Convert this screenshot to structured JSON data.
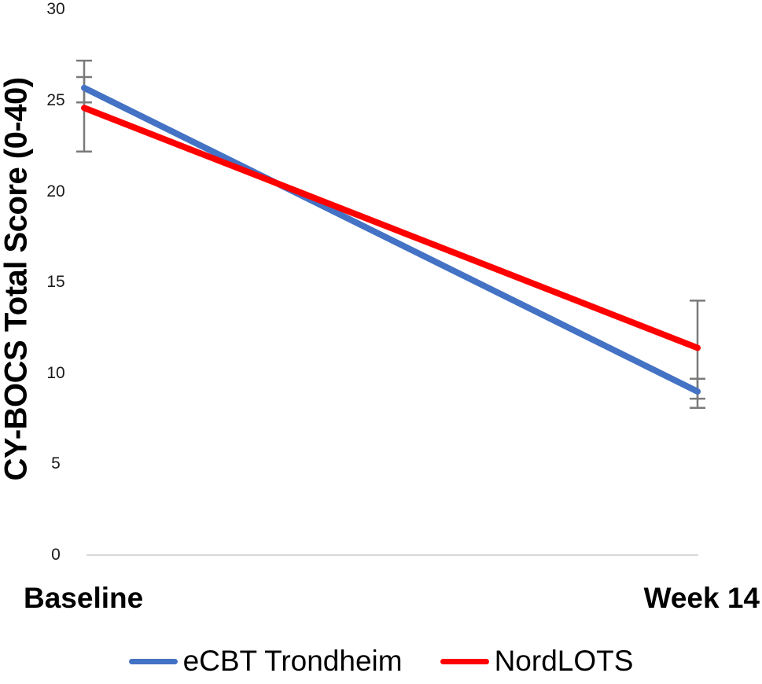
{
  "chart_data": {
    "type": "line",
    "title": "",
    "categories": [
      "Baseline",
      "Week 14"
    ],
    "xlabel": "",
    "ylabel": "CY-BOCS Total Score (0-40)",
    "ylim": [
      0,
      30
    ],
    "yticks": [
      30,
      25,
      20,
      15,
      10,
      5,
      0
    ],
    "grid": false,
    "legend_position": "bottom",
    "error_bars": "vertical capped whiskers at each data point",
    "series": [
      {
        "name": "eCBT Trondheim",
        "color": "#4472C4",
        "values": [
          25.7,
          9.0
        ],
        "ci_low": [
          24.9,
          8.1
        ],
        "ci_high": [
          26.3,
          9.7
        ]
      },
      {
        "name": "NordLOTS",
        "color": "#FF0000",
        "values": [
          24.6,
          11.4
        ],
        "ci_low": [
          22.2,
          8.6
        ],
        "ci_high": [
          27.2,
          14.0
        ]
      }
    ]
  },
  "colors": {
    "error_bar": "#7a7a7a",
    "axis_line": "#d9d9d9",
    "text": "#000000"
  }
}
